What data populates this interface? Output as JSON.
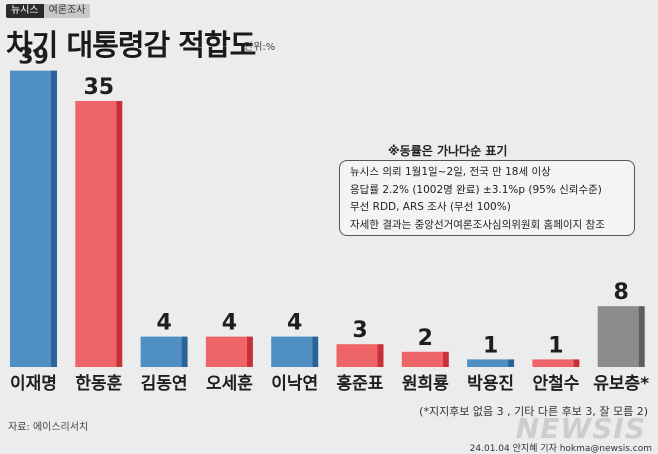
{
  "header": {
    "tag_primary": "뉴시스",
    "tag_secondary": "여론조사",
    "title": "차기 대통령감 적합도",
    "unit": "단위:%"
  },
  "note": {
    "heading": "※동률은 가나다순 표기",
    "lines": [
      "뉴시스 의뢰 1월1일~2일, 전국 만 18세 이상",
      "응답률 2.2% (1002명 완료) ±3.1%p (95% 신뢰수준)",
      "무선 RDD, ARS 조사 (무선 100%)",
      "자세한 결과는 중앙선거여론조사심의위원회 홈페이지 참조"
    ]
  },
  "footnote": "(*지지후보 없음 3 , 기타 다른 후보 3, 잘 모름 2)",
  "source": "자료: 에이스리서치",
  "credit": "24.01.04 안지혜 기자 hokma@newsis.com",
  "logo": "NEWSIS",
  "colors": {
    "blue": "#4f8fc4",
    "blue_dark": "#2a6396",
    "red": "#ee6467",
    "red_dark": "#c8313a",
    "gray": "#8c8c8c",
    "gray_dark": "#5e5e5e"
  },
  "chart_data": {
    "type": "bar",
    "categories": [
      "이재명",
      "한동훈",
      "김동연",
      "오세훈",
      "이낙연",
      "홍준표",
      "원희룡",
      "박용진",
      "안철수",
      "유보층*"
    ],
    "values": [
      39,
      35,
      4,
      4,
      4,
      3,
      2,
      1,
      1,
      8
    ],
    "bar_colors": [
      "blue",
      "red",
      "blue",
      "red",
      "blue",
      "red",
      "red",
      "blue",
      "red",
      "gray"
    ],
    "ylabel": "",
    "xlabel": ""
  }
}
